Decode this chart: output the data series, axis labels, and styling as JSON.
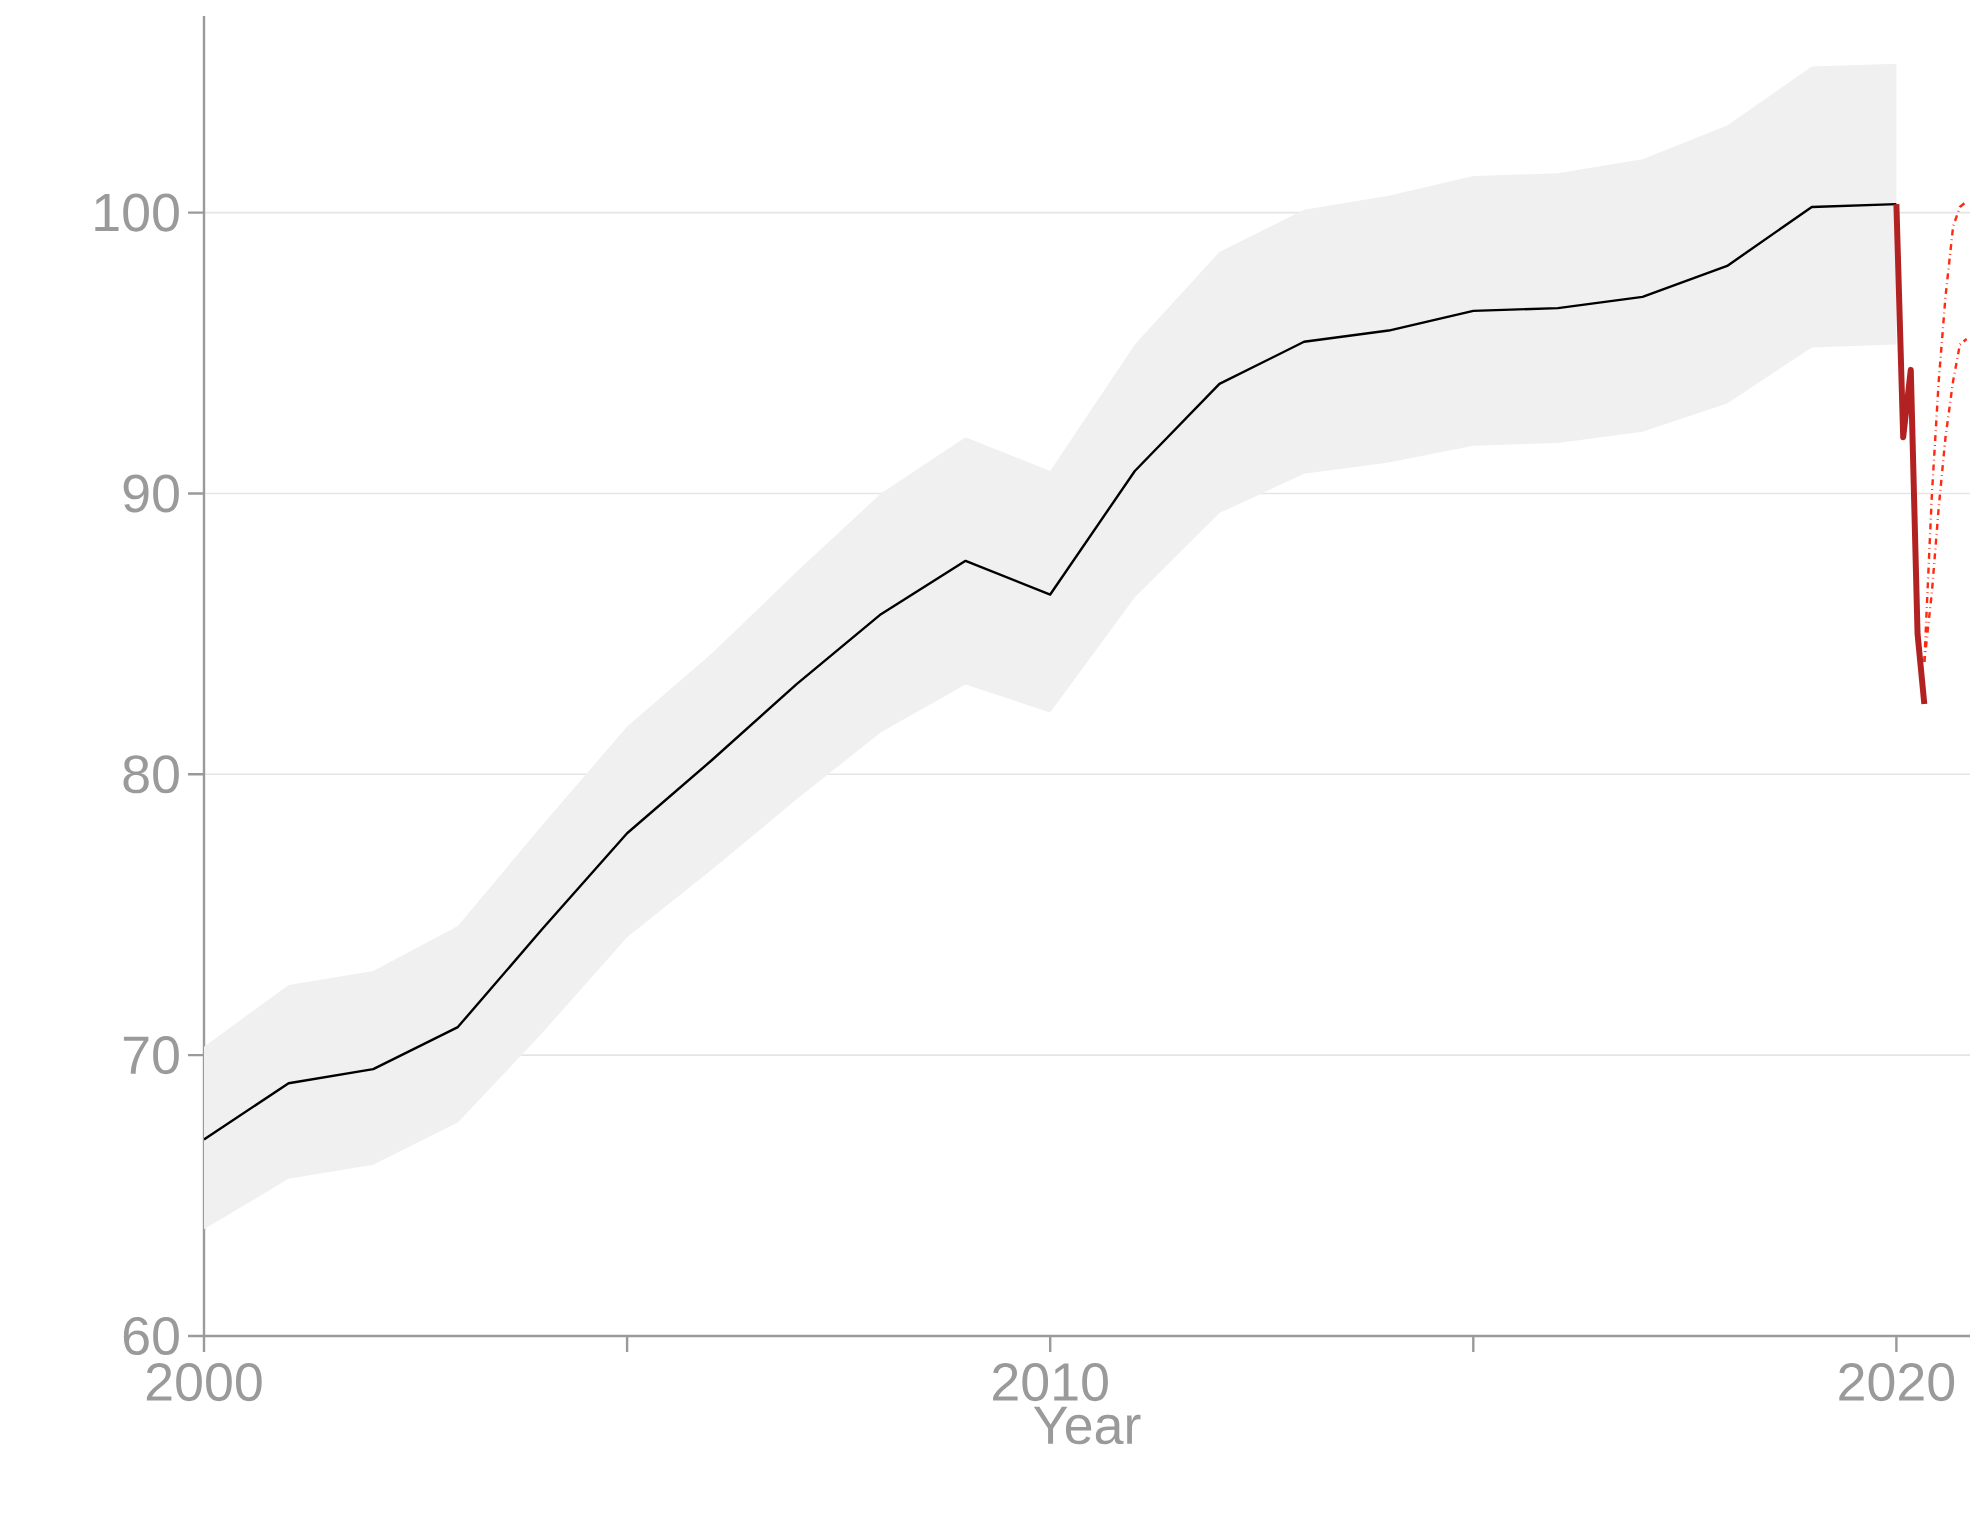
{
  "chart_data": {
    "type": "line",
    "xlabel": "Year",
    "xlim": [
      2000,
      2020.87
    ],
    "ylim": [
      60,
      107
    ],
    "xticks": [
      2000,
      {
        "value": 2005,
        "label": null
      },
      2010,
      {
        "value": 2015,
        "label": null
      },
      2020
    ],
    "yticks": [
      60,
      70,
      80,
      90,
      100
    ],
    "grid": "y",
    "legend": false,
    "marker": "none",
    "series": [
      {
        "color": "#000000",
        "line_style": "solid",
        "x": [
          2000,
          2001,
          2002,
          2003,
          2004,
          2005,
          2006,
          2007,
          2008,
          2009,
          2010,
          2011,
          2012,
          2013,
          2014,
          2015,
          2016,
          2017,
          2018,
          2019,
          2020
        ],
        "values": [
          67.0,
          69.0,
          69.5,
          71.0,
          74.5,
          77.9,
          80.5,
          83.2,
          85.7,
          87.6,
          86.4,
          90.8,
          93.9,
          95.4,
          95.8,
          96.5,
          96.6,
          97.0,
          98.1,
          100.2,
          100.3
        ],
        "lower": [
          63.8,
          65.6,
          66.1,
          67.6,
          70.8,
          74.2,
          76.6,
          79.1,
          81.5,
          83.2,
          82.2,
          86.3,
          89.3,
          90.7,
          91.1,
          91.7,
          91.8,
          92.2,
          93.2,
          95.2,
          95.3
        ],
        "upper": [
          70.3,
          72.5,
          73.0,
          74.6,
          78.2,
          81.7,
          84.3,
          87.2,
          90.0,
          92.0,
          90.8,
          95.3,
          98.6,
          100.1,
          100.6,
          101.3,
          101.4,
          101.9,
          103.1,
          105.2,
          105.3
        ]
      },
      {
        "color": "#b22222",
        "line_style": "solid",
        "x": [
          2020.0,
          2020.08,
          2020.17,
          2020.25,
          2020.33
        ],
        "values": [
          100.3,
          92.0,
          94.4,
          85.0,
          82.5
        ]
      },
      {
        "color": "#ff2a10",
        "line_style": "dashed",
        "x": [
          2020.33,
          2020.42,
          2020.5,
          2020.58,
          2020.67,
          2020.75,
          2020.83
        ],
        "values": [
          84.0,
          90.0,
          94.0,
          97.0,
          99.5,
          100.2,
          100.4
        ]
      },
      {
        "color": "#ff2a10",
        "line_style": "dashed",
        "x": [
          2020.33,
          2020.42,
          2020.5,
          2020.58,
          2020.67,
          2020.75,
          2020.83
        ],
        "values": [
          84.0,
          86.5,
          89.5,
          92.0,
          94.0,
          95.3,
          95.5
        ]
      }
    ]
  }
}
